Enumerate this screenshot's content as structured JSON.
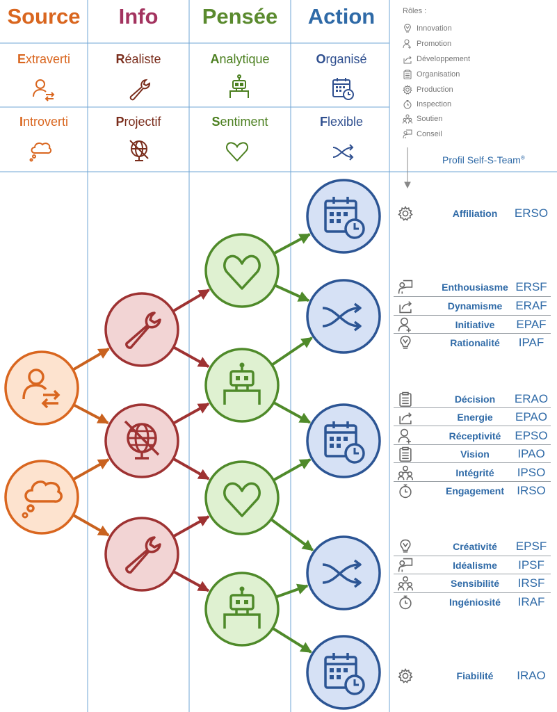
{
  "columns": [
    {
      "title": "Source",
      "color": "#d9661f"
    },
    {
      "title": "Info",
      "color": "#a3335f"
    },
    {
      "title": "Pensée",
      "color": "#5a8a2e"
    },
    {
      "title": "Action",
      "color": "#2f6aa7"
    }
  ],
  "traits_top": [
    {
      "first": "E",
      "rest": "xtraverti",
      "letter_color": "#d9661f",
      "text_color": "#d9661f"
    },
    {
      "first": "R",
      "rest": "éaliste",
      "letter_color": "#7a2d1c",
      "text_color": "#7a2d1c"
    },
    {
      "first": "A",
      "rest": "nalytique",
      "letter_color": "#4b7f1f",
      "text_color": "#4b7f1f"
    },
    {
      "first": "O",
      "rest": "rganisé",
      "letter_color": "#2f4f8f",
      "text_color": "#2f4f8f"
    }
  ],
  "traits_bottom": [
    {
      "first": "I",
      "rest": "ntroverti",
      "letter_color": "#d9661f",
      "text_color": "#d9661f"
    },
    {
      "first": "P",
      "rest": "rojectif",
      "letter_color": "#7a2d1c",
      "text_color": "#7a2d1c"
    },
    {
      "first": "S",
      "rest": "entiment",
      "letter_color": "#4b7f1f",
      "text_color": "#4b7f1f"
    },
    {
      "first": "F",
      "rest": "lexible",
      "letter_color": "#2f4f8f",
      "text_color": "#2f4f8f"
    }
  ],
  "roles": {
    "title": "Rôles :",
    "items": [
      {
        "label": "Innovation",
        "icon": "lightbulb-icon"
      },
      {
        "label": "Promotion",
        "icon": "person-plus-icon"
      },
      {
        "label": "Développement",
        "icon": "share-icon"
      },
      {
        "label": "Organisation",
        "icon": "clipboard-icon"
      },
      {
        "label": "Production",
        "icon": "gear-icon"
      },
      {
        "label": "Inspection",
        "icon": "stopwatch-icon"
      },
      {
        "label": "Soutien",
        "icon": "group-icon"
      },
      {
        "label": "Conseil",
        "icon": "presenter-icon"
      }
    ]
  },
  "brand": {
    "text": "Profil Self-S-Team",
    "mark": "®"
  },
  "profiles": [
    {
      "name": "Affiliation",
      "code": "ERSO",
      "icon": "gear-icon"
    },
    {
      "name": "Enthousiasme",
      "code": "ERSF",
      "icon": "presenter-icon"
    },
    {
      "name": "Dynamisme",
      "code": "ERAF",
      "icon": "share-icon"
    },
    {
      "name": "Initiative",
      "code": "EPAF",
      "icon": "person-plus-icon"
    },
    {
      "name": "Rationalité",
      "code": "IPAF",
      "icon": "lightbulb-icon"
    },
    {
      "name": "Décision",
      "code": "ERAO",
      "icon": "clipboard-icon"
    },
    {
      "name": "Energie",
      "code": "EPAO",
      "icon": "share-icon"
    },
    {
      "name": "Réceptivité",
      "code": "EPSO",
      "icon": "person-plus-icon"
    },
    {
      "name": "Vision",
      "code": "IPAO",
      "icon": "clipboard-icon"
    },
    {
      "name": "Intégrité",
      "code": "IPSO",
      "icon": "group-icon"
    },
    {
      "name": "Engagement",
      "code": "IRSO",
      "icon": "stopwatch-icon"
    },
    {
      "name": "Créativité",
      "code": "EPSF",
      "icon": "lightbulb-icon"
    },
    {
      "name": "Idéalisme",
      "code": "IPSF",
      "icon": "presenter-icon"
    },
    {
      "name": "Sensibilité",
      "code": "IRSF",
      "icon": "group-icon"
    },
    {
      "name": "Ingéniosité",
      "code": "IRAF",
      "icon": "stopwatch-icon"
    },
    {
      "name": "Fiabilité",
      "code": "IRAO",
      "icon": "gear-icon"
    }
  ],
  "colors": {
    "source_fill": "#fde3cf",
    "source_stroke": "#d9661f",
    "info_fill": "#f2d4d4",
    "info_stroke": "#9e3232",
    "pensee_fill": "#dff1d1",
    "pensee_stroke": "#4f8a2a",
    "action_fill": "#d6e1f5",
    "action_stroke": "#2c5594",
    "grid": "#6fa5d4"
  }
}
